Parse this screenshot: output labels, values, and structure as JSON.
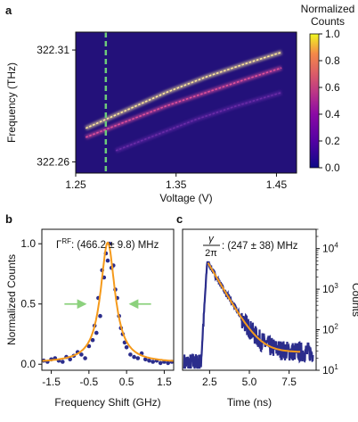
{
  "figure": {
    "colors": {
      "heatmap_bg": "#23117a",
      "trace_hot": "#fde79a",
      "trace_mid": "#e0509a",
      "trace_dim": "#6a2ca8",
      "marker": "#6ecb7a",
      "scatter": "#2b2d8c",
      "fit": "#f59a1b",
      "arrow": "#8cd17d"
    }
  },
  "chart_data": [
    {
      "panel": "a",
      "type": "heatmap",
      "xlabel": "Voltage (V)",
      "ylabel": "Frequency (THz)",
      "xlim": [
        1.25,
        1.47
      ],
      "ylim": [
        322.255,
        322.318
      ],
      "xticks": [
        "1.25",
        "1.35",
        "1.45"
      ],
      "xtick_values": [
        1.25,
        1.35,
        1.45
      ],
      "yticks": [
        "322.26",
        "322.31"
      ],
      "ytick_values": [
        322.26,
        322.31
      ],
      "colorbar": {
        "label": "Normalized Counts",
        "range": [
          0,
          1
        ],
        "ticks": [
          "0.0",
          "0.2",
          "0.4",
          "0.6",
          "0.8",
          "1.0"
        ],
        "tick_values": [
          0,
          0.2,
          0.4,
          0.6,
          0.8,
          1.0
        ]
      },
      "marker_voltage": 1.28,
      "traces": [
        {
          "intensity": 1.0,
          "x": [
            1.26,
            1.3,
            1.34,
            1.38,
            1.42,
            1.455
          ],
          "y": [
            322.275,
            322.283,
            322.291,
            322.298,
            322.304,
            322.309
          ]
        },
        {
          "intensity": 0.6,
          "x": [
            1.26,
            1.3,
            1.34,
            1.38,
            1.42,
            1.455
          ],
          "y": [
            322.271,
            322.278,
            322.285,
            322.291,
            322.297,
            322.302
          ]
        },
        {
          "intensity": 0.3,
          "x": [
            1.29,
            1.33,
            1.37,
            1.41,
            1.455
          ],
          "y": [
            322.265,
            322.272,
            322.279,
            322.285,
            322.291
          ]
        }
      ]
    },
    {
      "panel": "b",
      "type": "scatter",
      "xlabel": "Frequency Shift (GHz)",
      "ylabel": "Normalized Counts",
      "xlim": [
        -1.75,
        1.75
      ],
      "ylim": [
        -0.05,
        1.12
      ],
      "xticks": [
        "-1.5",
        "-0.5",
        "0.5",
        "1.5"
      ],
      "xtick_values": [
        -1.5,
        -0.5,
        0.5,
        1.5
      ],
      "yticks": [
        "0.0",
        "0.5",
        "1.0"
      ],
      "ytick_values": [
        0,
        0.5,
        1.0
      ],
      "annotation": {
        "symbol": "Γ",
        "superscript": "RF",
        "text": ": (466.2 ± 9.8) MHz"
      },
      "fit": {
        "center": 0.0,
        "fwhm": 0.466,
        "amplitude": 1.0
      },
      "points": {
        "x": [
          -1.7,
          -1.6,
          -1.5,
          -1.4,
          -1.3,
          -1.2,
          -1.1,
          -1.0,
          -0.9,
          -0.8,
          -0.7,
          -0.6,
          -0.5,
          -0.4,
          -0.35,
          -0.3,
          -0.25,
          -0.2,
          -0.15,
          -0.1,
          -0.05,
          0.0,
          0.05,
          0.1,
          0.15,
          0.2,
          0.25,
          0.3,
          0.35,
          0.4,
          0.45,
          0.5,
          0.6,
          0.7,
          0.8,
          0.9,
          1.0,
          1.1,
          1.2,
          1.3,
          1.4,
          1.5,
          1.6,
          1.7
        ],
        "y": [
          0.03,
          0.02,
          0.04,
          0.05,
          0.03,
          0.02,
          0.06,
          0.04,
          0.07,
          0.1,
          0.08,
          0.05,
          0.15,
          0.2,
          0.32,
          0.26,
          0.55,
          0.4,
          0.78,
          0.72,
          0.92,
          0.86,
          1.0,
          0.8,
          0.82,
          0.62,
          0.55,
          0.4,
          0.3,
          0.25,
          0.18,
          0.14,
          0.08,
          0.06,
          0.05,
          0.09,
          0.04,
          0.03,
          0.02,
          0.03,
          0.01,
          0.02,
          0.01,
          0.02
        ]
      },
      "arrows": [
        {
          "direction": "right",
          "x_from": -1.15,
          "x_to": -0.6,
          "y": 0.5
        },
        {
          "direction": "left",
          "x_from": 1.15,
          "x_to": 0.6,
          "y": 0.5
        }
      ]
    },
    {
      "panel": "c",
      "type": "line",
      "xlabel": "Time (ns)",
      "ylabel": "Counts",
      "yscale": "log",
      "xlim": [
        0.8,
        9.2
      ],
      "ylim": [
        10,
        30000
      ],
      "xticks": [
        "2.5",
        "5.0",
        "7.5"
      ],
      "xtick_values": [
        2.5,
        5.0,
        7.5
      ],
      "yticks": [
        {
          "base": "10",
          "exp": "1"
        },
        {
          "base": "10",
          "exp": "2"
        },
        {
          "base": "10",
          "exp": "3"
        },
        {
          "base": "10",
          "exp": "4"
        }
      ],
      "ytick_values": [
        10,
        100,
        1000,
        10000
      ],
      "annotation": {
        "fraction_num": "γ",
        "fraction_den": "2π",
        "text": ": (247 ± 38) MHz"
      },
      "data": {
        "baseline": 15,
        "rise_start": 1.95,
        "peak_time": 2.35,
        "peak_counts": 4800,
        "decay_rate_per_ns": 1.55,
        "offset": 28,
        "end_time": 9.0
      },
      "fit": {
        "x_start": 2.4,
        "x_end": 8.2
      }
    }
  ],
  "labels": {
    "panel_a": "a",
    "panel_b": "b",
    "panel_c": "c"
  }
}
